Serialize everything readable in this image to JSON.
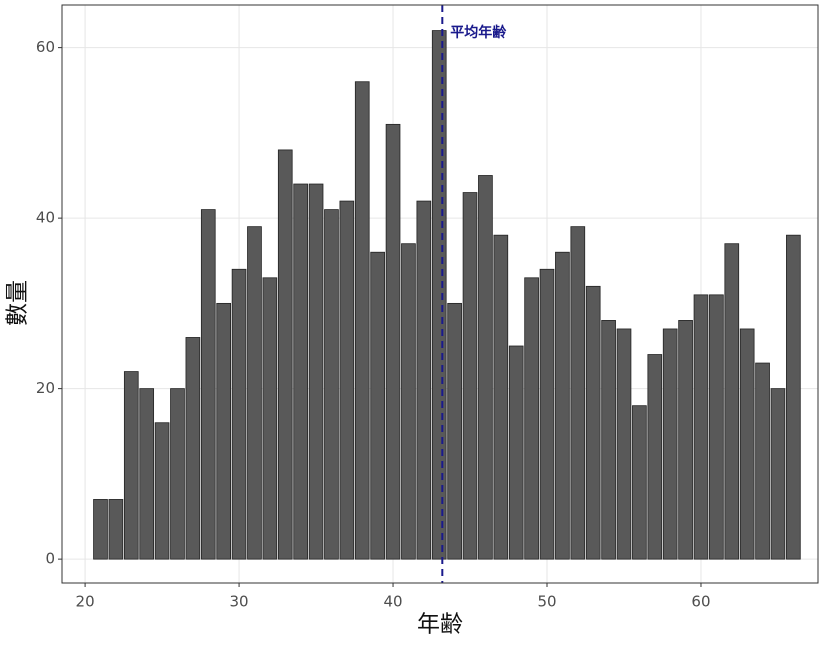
{
  "chart_data": {
    "type": "bar",
    "x_label": "年齢",
    "y_label": "數量",
    "x": [
      21,
      22,
      23,
      24,
      25,
      26,
      27,
      28,
      29,
      30,
      31,
      32,
      33,
      34,
      35,
      36,
      37,
      38,
      39,
      40,
      41,
      42,
      43,
      44,
      45,
      46,
      47,
      48,
      49,
      50,
      51,
      52,
      53,
      54,
      55,
      56,
      57,
      58,
      59,
      60,
      61,
      62,
      63,
      64,
      65,
      66
    ],
    "values": [
      7,
      7,
      22,
      20,
      16,
      20,
      26,
      41,
      30,
      34,
      39,
      33,
      48,
      44,
      44,
      41,
      42,
      56,
      36,
      51,
      37,
      42,
      62,
      30,
      43,
      45,
      38,
      25,
      33,
      34,
      36,
      39,
      32,
      28,
      27,
      18,
      24,
      27,
      28,
      31,
      31,
      37,
      27,
      23,
      20,
      38
    ],
    "color": "#595959",
    "xlim": [
      18.5,
      67.6
    ],
    "xticks": [
      20,
      30,
      40,
      50,
      60
    ],
    "ylim": [
      -2.8,
      65
    ],
    "yticks": [
      0,
      20,
      40,
      60
    ],
    "grid": true,
    "vline": {
      "value": 43.2,
      "label": "平均年齢",
      "color": "#1a1a8c"
    }
  }
}
